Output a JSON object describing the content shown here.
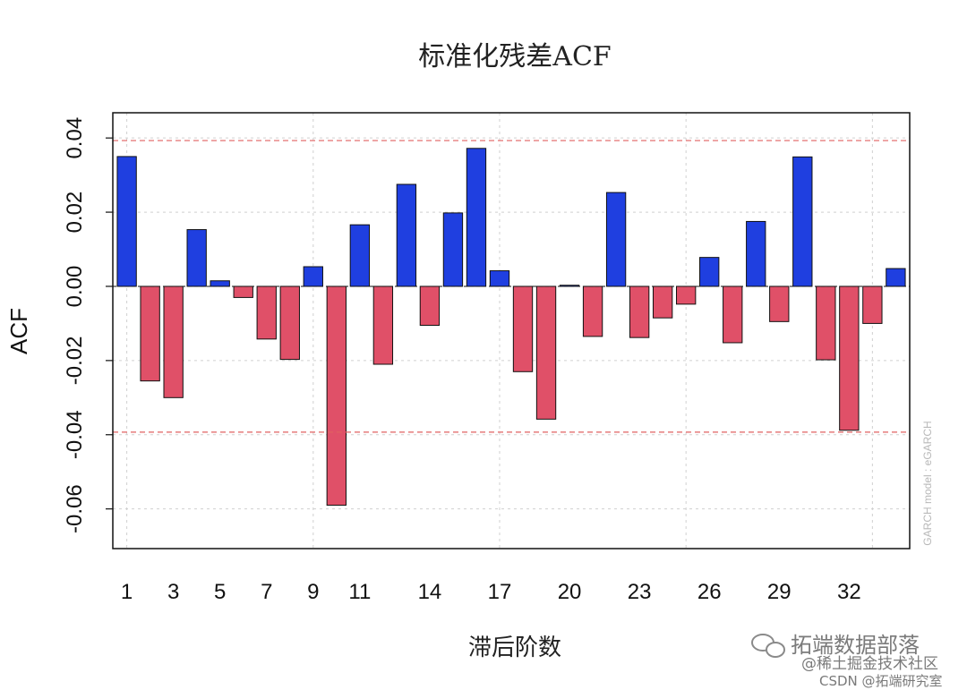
{
  "chart_data": {
    "type": "bar",
    "title": "标准化残差ACF",
    "xlabel": "滞后阶数",
    "ylabel": "ACF",
    "side_note": "GARCH model : eGARCH",
    "x": [
      1,
      2,
      3,
      4,
      5,
      6,
      7,
      8,
      9,
      10,
      11,
      12,
      13,
      14,
      15,
      16,
      17,
      18,
      19,
      20,
      21,
      22,
      23,
      24,
      25,
      26,
      27,
      28,
      29,
      30,
      31,
      32,
      33,
      34
    ],
    "values": [
      0.035,
      -0.0255,
      -0.03,
      0.0153,
      0.0015,
      -0.003,
      -0.0142,
      -0.0197,
      0.0053,
      -0.059,
      0.0166,
      -0.021,
      0.0275,
      -0.0105,
      0.0198,
      0.0372,
      0.0042,
      -0.023,
      -0.0358,
      0.0003,
      -0.0135,
      0.0253,
      -0.0138,
      -0.0085,
      -0.0048,
      0.0078,
      -0.0152,
      0.0175,
      -0.0095,
      0.0349,
      -0.0198,
      -0.0388,
      -0.01,
      0.0048
    ],
    "x_tick_labels": [
      "1",
      "3",
      "5",
      "7",
      "9",
      "11",
      "14",
      "17",
      "20",
      "23",
      "26",
      "29",
      "32"
    ],
    "x_tick_positions": [
      1,
      3,
      5,
      7,
      9,
      11,
      14,
      17,
      20,
      23,
      26,
      29,
      32
    ],
    "y_ticks": [
      0.04,
      0.02,
      0.0,
      -0.02,
      -0.04,
      -0.06
    ],
    "y_tick_labels": [
      "0.04",
      "0.02",
      "0.00",
      "-0.02",
      "-0.04",
      "-0.06"
    ],
    "ylim": [
      -0.0707,
      0.0468
    ],
    "confidence_bound": 0.0393,
    "grid": true,
    "colors": {
      "positive": "#1f3fe0",
      "negative": "#e05068",
      "bound_line": "#e06060",
      "grid": "#d0d0d0"
    }
  },
  "watermark": {
    "line1": "拓端数据部落",
    "line2": "@稀土掘金技术社区",
    "line3": "CSDN @拓端研究室"
  }
}
